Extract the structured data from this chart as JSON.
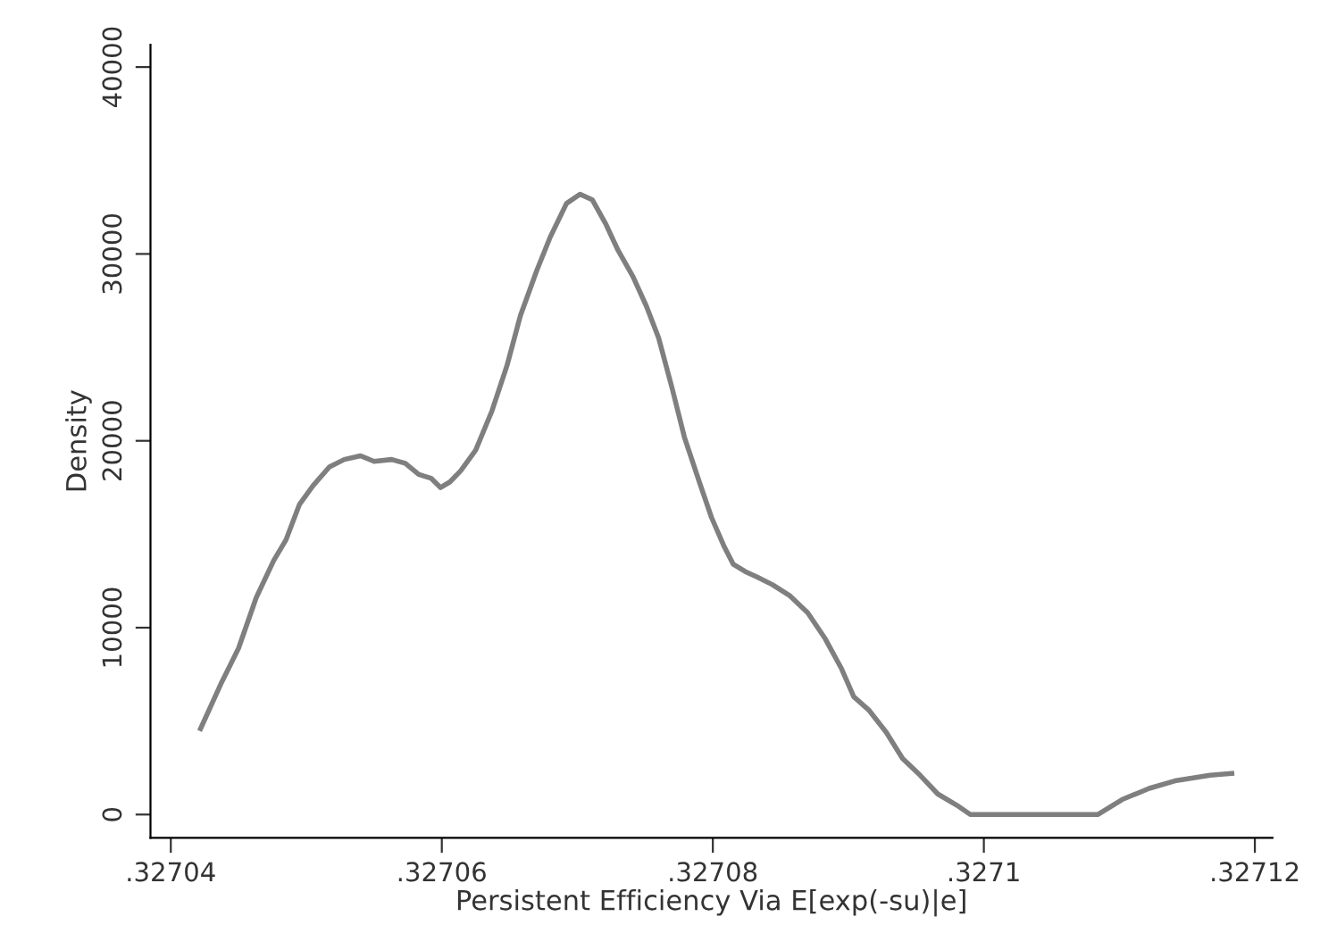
{
  "chart_data": {
    "type": "line",
    "xlabel": "Persistent Efficiency Via E[exp(-su)|e]",
    "ylabel": "Density",
    "x": [
      0.3270422,
      0.3270437,
      0.327045,
      0.3270463,
      0.3270476,
      0.3270485,
      0.3270495,
      0.3270505,
      0.3270517,
      0.3270528,
      0.327054,
      0.327055,
      0.3270563,
      0.3270573,
      0.3270583,
      0.3270592,
      0.3270599,
      0.3270606,
      0.3270614,
      0.3270625,
      0.3270637,
      0.3270648,
      0.3270658,
      0.327067,
      0.327068,
      0.3270692,
      0.3270702,
      0.3270711,
      0.3270721,
      0.327073,
      0.3270741,
      0.3270751,
      0.327076,
      0.327077,
      0.3270779,
      0.327079,
      0.3270799,
      0.3270808,
      0.3270815,
      0.3270824,
      0.3270833,
      0.3270844,
      0.3270857,
      0.327087,
      0.3270883,
      0.3270895,
      0.3270904,
      0.3270915,
      0.3270928,
      0.327094,
      0.3270953,
      0.3270966,
      0.327098,
      0.327099,
      0.3271084,
      0.3271102,
      0.3271122,
      0.3271141,
      0.3271167,
      0.3271183
    ],
    "series": [
      {
        "color": "#7f7f7f",
        "values": [
          4600,
          7000,
          8900,
          11600,
          13600,
          14700,
          16600,
          17600,
          18600,
          19000,
          19200,
          18900,
          19000,
          18800,
          18200,
          18000,
          17500,
          17800,
          18400,
          19500,
          21600,
          24000,
          26700,
          29100,
          30900,
          32700,
          33200,
          32900,
          31600,
          30200,
          28800,
          27200,
          25500,
          22800,
          20200,
          17800,
          15900,
          14400,
          13400,
          13000,
          12700,
          12300,
          11700,
          10800,
          9400,
          7800,
          6300,
          5600,
          4400,
          3000,
          2100,
          1100,
          500,
          0,
          0,
          800,
          1400,
          1800,
          2100,
          2200
        ]
      }
    ],
    "xlim": [
      0.3270385,
      0.3271213
    ],
    "ylim": [
      -1250,
      41200
    ],
    "xticks": [
      {
        "value": 0.32704,
        "label": ".32704"
      },
      {
        "value": 0.32706,
        "label": ".32706"
      },
      {
        "value": 0.32708,
        "label": ".32708"
      },
      {
        "value": 0.3271,
        "label": ".3271"
      },
      {
        "value": 0.32712,
        "label": ".32712"
      }
    ],
    "yticks": [
      0,
      10000,
      20000,
      30000,
      40000
    ],
    "grid": false,
    "legend": false,
    "line_style": "solid",
    "marker": "none"
  }
}
